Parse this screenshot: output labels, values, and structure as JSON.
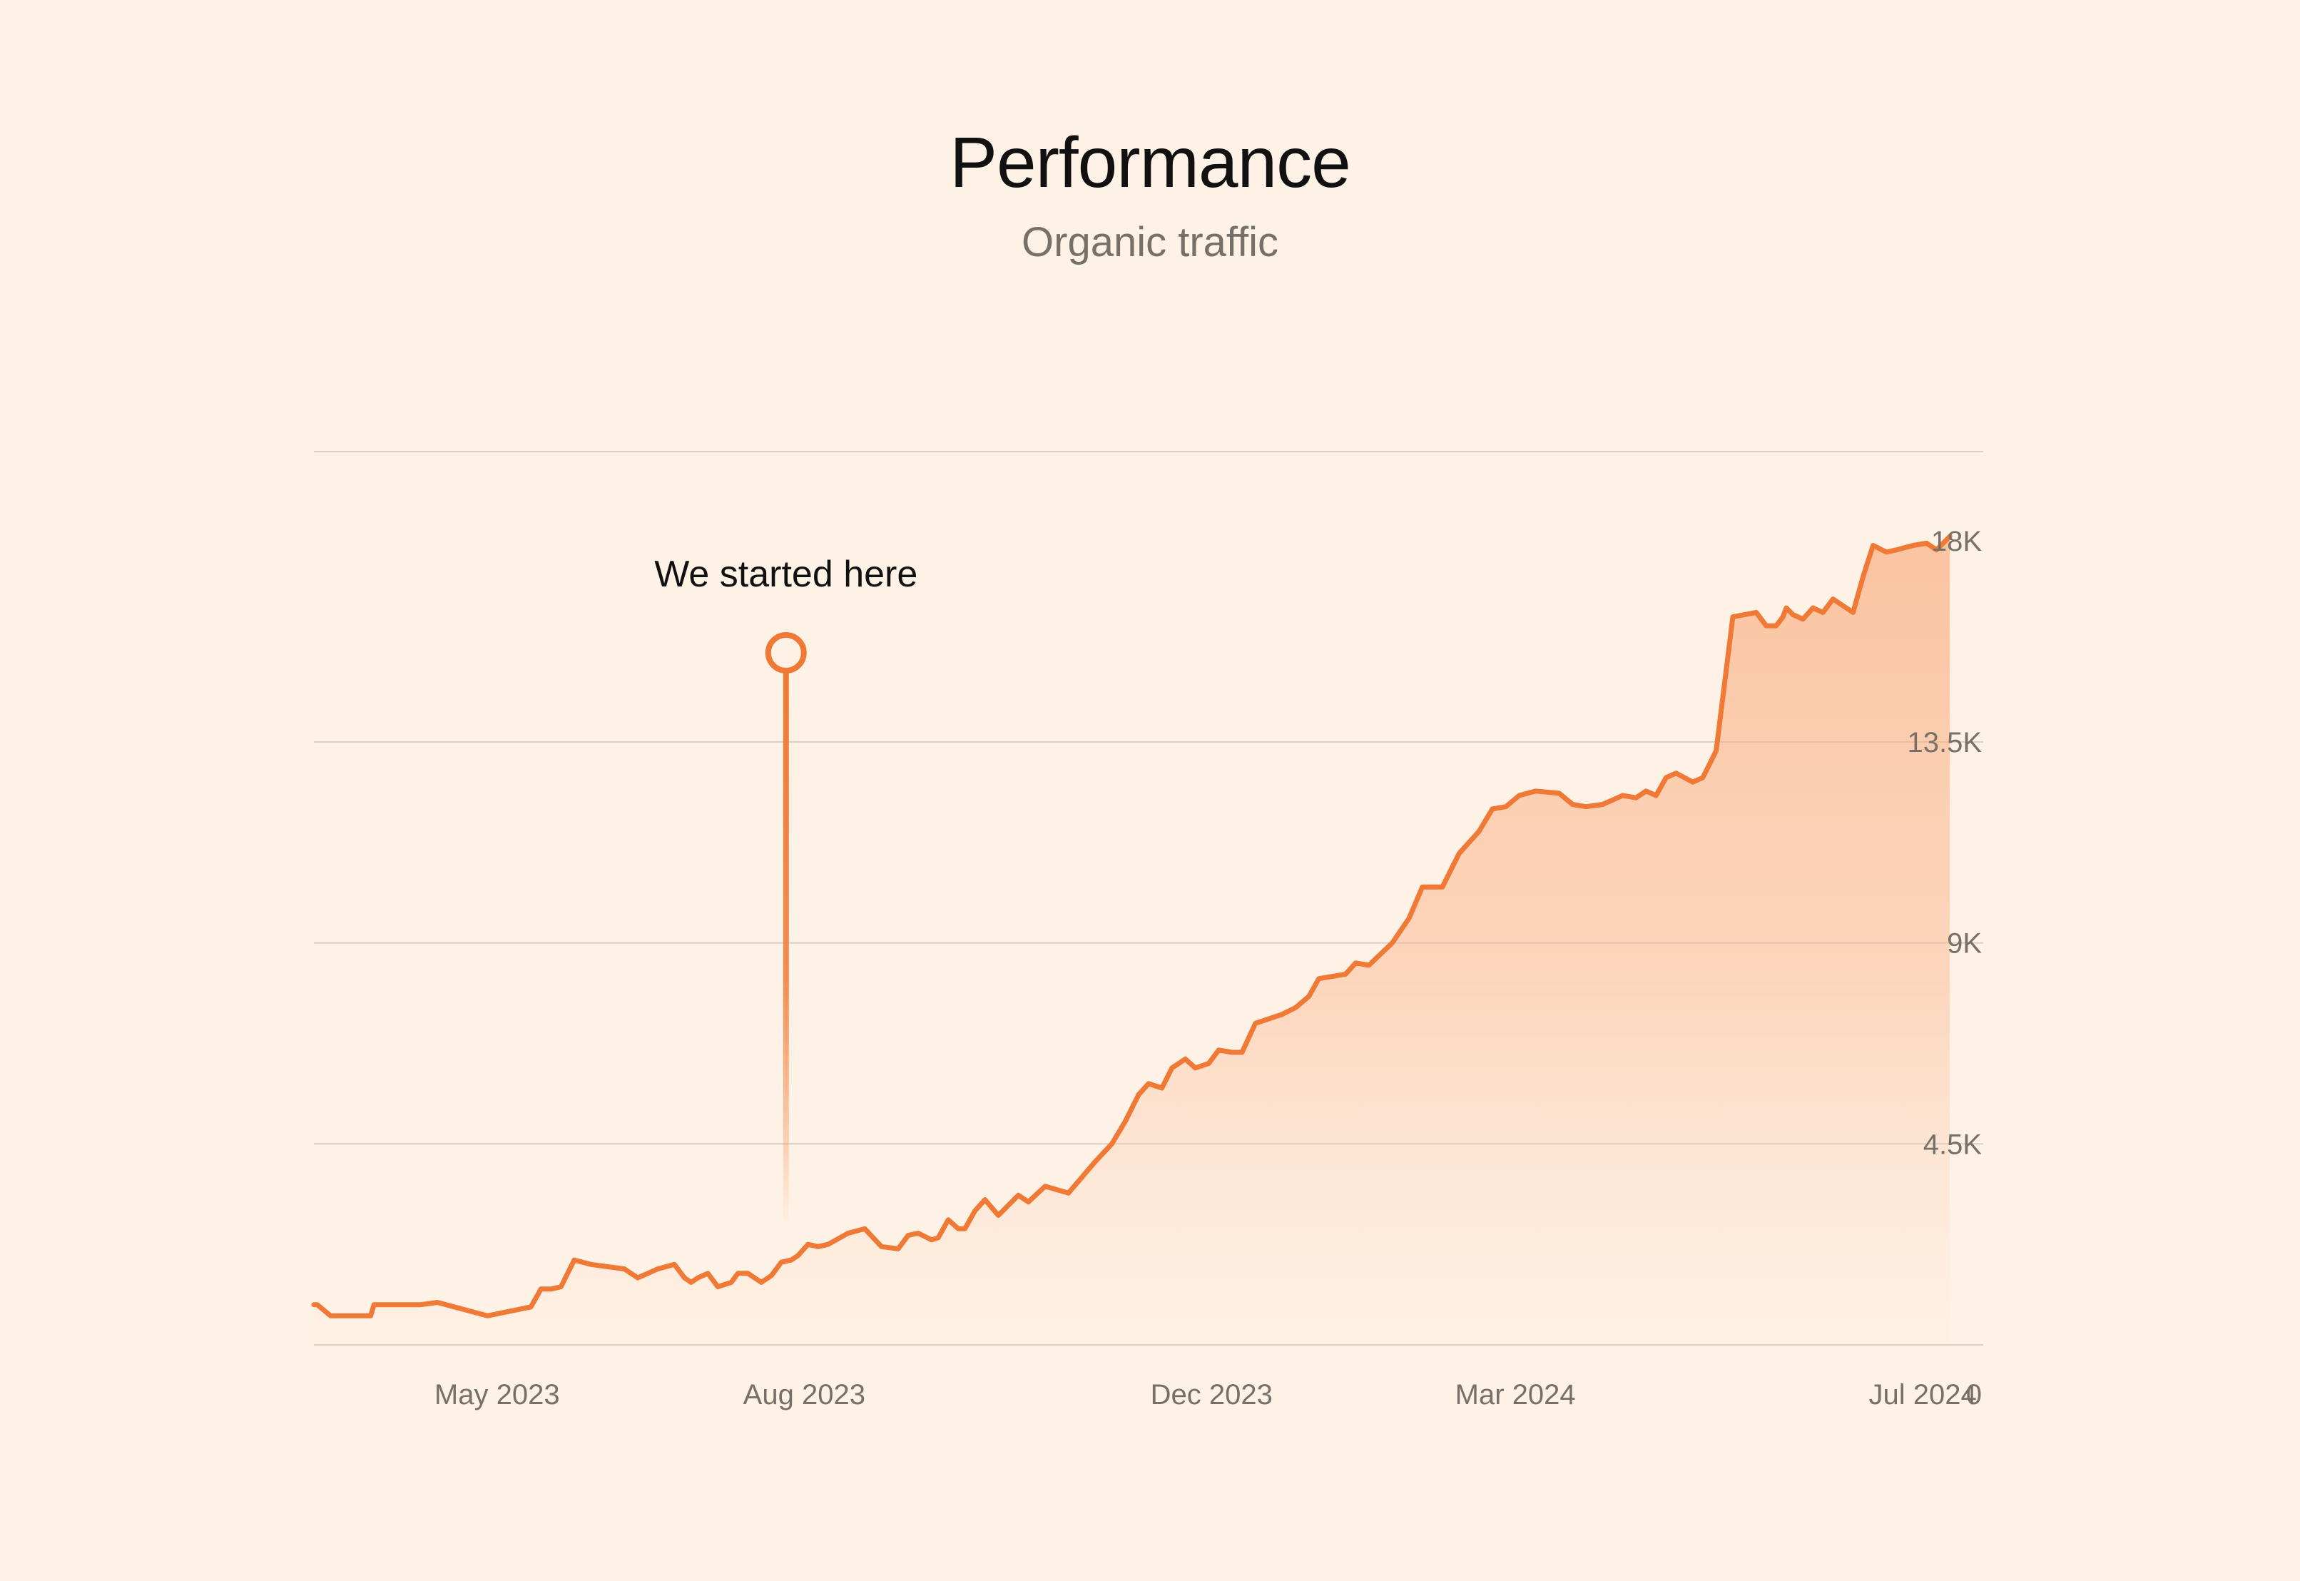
{
  "header": {
    "title": "Performance",
    "subtitle": "Organic traffic"
  },
  "colors": {
    "background": "#fef2e6",
    "line": "#f07a35",
    "grid": "#d8d0c8",
    "axis_text": "#777069",
    "title_text": "#111111"
  },
  "chart_data": {
    "type": "area",
    "title": "Performance",
    "subtitle": "Organic traffic",
    "xlabel": "",
    "ylabel": "",
    "x_tick_labels": [
      "May 2023",
      "Aug 2023",
      "Dec 2023",
      "Mar 2024",
      "Jul 2024"
    ],
    "y_tick_labels": [
      "0",
      "4.5K",
      "9K",
      "13.5K",
      "18K"
    ],
    "y_ticks": [
      0,
      4500,
      9000,
      13500,
      18000
    ],
    "ylim": [
      0,
      18000
    ],
    "y_axis_side": "right",
    "grid": "horizontal",
    "series": [
      {
        "name": "",
        "x": [
          "2023-03-20",
          "2023-03-24",
          "2023-04-01",
          "2023-04-05",
          "2023-04-06",
          "2023-04-20",
          "2023-04-25",
          "2023-05-10",
          "2023-05-23",
          "2023-05-26",
          "2023-05-29",
          "2023-06-01",
          "2023-06-05",
          "2023-06-10",
          "2023-06-20",
          "2023-06-24",
          "2023-06-30",
          "2023-07-05",
          "2023-07-08",
          "2023-07-10",
          "2023-07-12",
          "2023-07-15",
          "2023-07-18",
          "2023-07-22",
          "2023-07-24",
          "2023-07-27",
          "2023-07-31",
          "2023-08-03",
          "2023-08-06",
          "2023-08-09",
          "2023-08-11",
          "2023-08-14",
          "2023-08-17",
          "2023-08-20",
          "2023-08-26",
          "2023-08-31",
          "2023-09-05",
          "2023-09-10",
          "2023-09-13",
          "2023-09-16",
          "2023-09-20",
          "2023-09-22",
          "2023-09-25",
          "2023-09-28",
          "2023-09-30",
          "2023-10-03",
          "2023-10-06",
          "2023-10-10",
          "2023-10-16",
          "2023-10-19",
          "2023-10-24",
          "2023-10-31",
          "2023-11-08",
          "2023-11-13",
          "2023-11-17",
          "2023-11-21",
          "2023-11-24",
          "2023-11-28",
          "2023-12-01",
          "2023-12-05",
          "2023-12-08",
          "2023-12-12",
          "2023-12-15",
          "2023-12-19",
          "2023-12-22",
          "2023-12-26",
          "2024-01-03",
          "2024-01-07",
          "2024-01-11",
          "2024-01-14",
          "2024-01-18",
          "2024-01-22",
          "2024-01-25",
          "2024-01-29",
          "2024-02-05",
          "2024-02-10",
          "2024-02-14",
          "2024-02-20",
          "2024-02-25",
          "2024-03-02",
          "2024-03-06",
          "2024-03-10",
          "2024-03-14",
          "2024-03-19",
          "2024-03-26",
          "2024-03-30",
          "2024-04-03",
          "2024-04-08",
          "2024-04-11",
          "2024-04-14",
          "2024-04-18",
          "2024-04-21",
          "2024-04-24",
          "2024-04-27",
          "2024-04-30",
          "2024-05-05",
          "2024-05-08",
          "2024-05-12",
          "2024-05-17",
          "2024-05-24",
          "2024-05-27",
          "2024-05-30",
          "2024-06-01",
          "2024-06-02",
          "2024-06-04",
          "2024-06-07",
          "2024-06-10",
          "2024-06-13",
          "2024-06-16",
          "2024-06-19",
          "2024-06-22",
          "2024-06-25",
          "2024-06-28",
          "2024-07-02",
          "2024-07-05",
          "2024-07-10",
          "2024-07-14",
          "2024-07-17",
          "2024-07-21"
        ],
        "values": [
          900,
          650,
          650,
          650,
          900,
          900,
          950,
          650,
          850,
          1250,
          1250,
          1300,
          1900,
          1800,
          1700,
          1500,
          1700,
          1800,
          1500,
          1400,
          1500,
          1600,
          1300,
          1400,
          1600,
          1600,
          1400,
          1550,
          1850,
          1900,
          2000,
          2250,
          2200,
          2250,
          2500,
          2600,
          2200,
          2150,
          2450,
          2500,
          2350,
          2400,
          2800,
          2600,
          2600,
          3000,
          3250,
          2900,
          3350,
          3200,
          3550,
          3400,
          4100,
          4500,
          5000,
          5600,
          5850,
          5750,
          6200,
          6400,
          6200,
          6300,
          6600,
          6550,
          6550,
          7200,
          7400,
          7550,
          7800,
          8200,
          8250,
          8300,
          8550,
          8500,
          9000,
          9550,
          10250,
          10250,
          11000,
          11500,
          12000,
          12050,
          12300,
          12400,
          12350,
          12100,
          12050,
          12100,
          12200,
          12300,
          12250,
          12400,
          12300,
          12700,
          12800,
          12600,
          12700,
          13300,
          16300,
          16400,
          16100,
          16100,
          16300,
          16500,
          16350,
          16250,
          16500,
          16400,
          16700,
          16550,
          16400,
          17200,
          17900,
          17750,
          17800,
          17900,
          17950,
          17800,
          18100
        ]
      }
    ],
    "annotations": [
      {
        "label": "We started here",
        "x": "2023-08-01",
        "type": "marker"
      }
    ]
  }
}
